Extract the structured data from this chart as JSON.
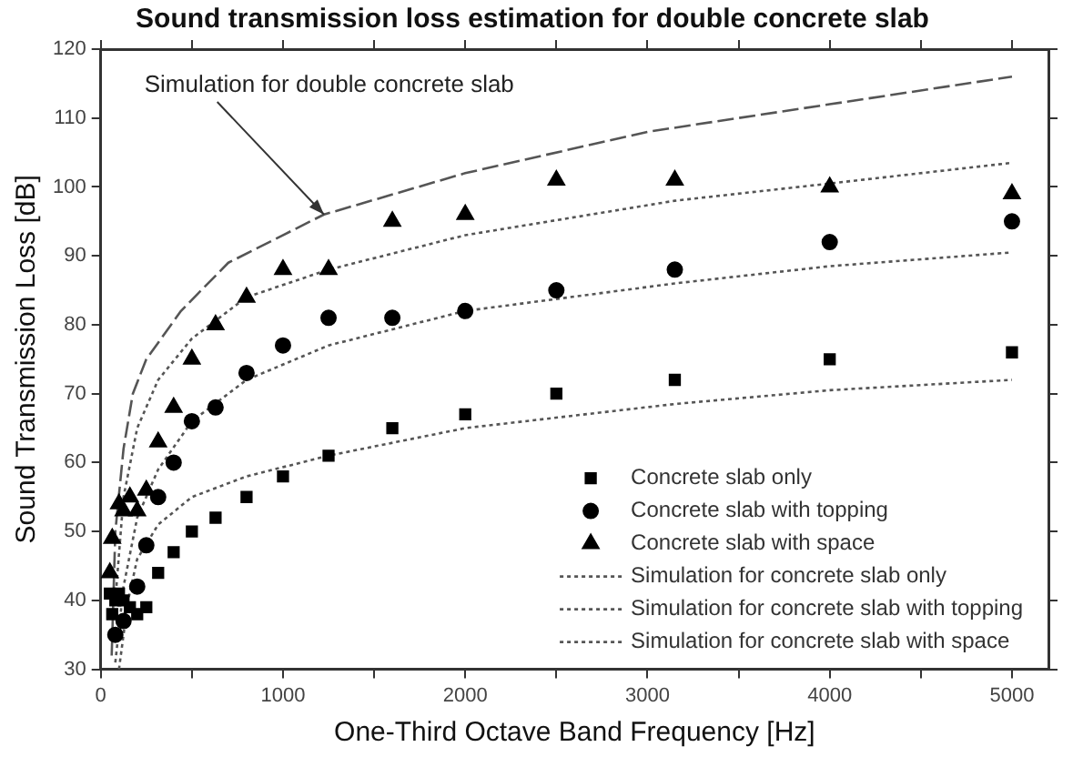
{
  "chart_data": {
    "type": "scatter",
    "title": "Sound transmission loss estimation for double concrete slab",
    "xlabel": "One-Third Octave Band Frequency [Hz]",
    "ylabel": "Sound Transmission Loss [dB]",
    "x": [
      50,
      63,
      80,
      100,
      125,
      160,
      200,
      250,
      315,
      400,
      500,
      630,
      800,
      1000,
      1250,
      1600,
      2000,
      2500,
      3150,
      4000,
      5000
    ],
    "xlim": [
      0,
      5200
    ],
    "ylim": [
      30,
      120
    ],
    "xticks": [
      0,
      {
        "value": 500,
        "label": null
      },
      1000,
      {
        "value": 1500,
        "label": null
      },
      2000,
      {
        "value": 2500,
        "label": null
      },
      3000,
      {
        "value": 3500,
        "label": null
      },
      4000,
      {
        "value": 4500,
        "label": null
      },
      5000
    ],
    "yticks": [
      30,
      40,
      50,
      60,
      70,
      80,
      90,
      100,
      110,
      120
    ],
    "grid": false,
    "legend": "bottom right",
    "series": [
      {
        "name": "Concrete slab only",
        "type": "scatter",
        "marker": "square",
        "color": "#000000",
        "values": [
          41,
          38,
          40,
          41,
          40,
          39,
          38,
          39,
          44,
          47,
          50,
          52,
          55,
          58,
          61,
          65,
          67,
          70,
          72,
          75,
          76
        ]
      },
      {
        "name": "Concrete slab with topping",
        "type": "scatter",
        "marker": "circle",
        "color": "#000000",
        "values": [
          null,
          null,
          35,
          null,
          37,
          null,
          42,
          48,
          55,
          60,
          66,
          68,
          73,
          77,
          81,
          81,
          82,
          85,
          88,
          92,
          95
        ]
      },
      {
        "name": "Concrete slab with space",
        "type": "scatter",
        "marker": "triangle",
        "color": "#000000",
        "values": [
          44,
          49,
          null,
          54,
          53,
          55,
          53,
          56,
          63,
          68,
          75,
          80,
          84,
          88,
          88,
          95,
          96,
          101,
          101,
          100,
          99
        ]
      },
      {
        "name": "Simulation for concrete slab only",
        "type": "line",
        "line_style": "dotted",
        "marker": "none",
        "color": "#555555",
        "x": [
          100,
          150,
          200,
          315,
          500,
          800,
          1250,
          2000,
          3150,
          4000,
          5000
        ],
        "values": [
          30,
          40,
          46,
          51,
          55,
          58,
          61,
          65,
          68.5,
          70.5,
          72
        ]
      },
      {
        "name": "Simulation for concrete slab with topping",
        "type": "line",
        "line_style": "dotted",
        "marker": "none",
        "color": "#555555",
        "x": [
          80,
          125,
          200,
          315,
          500,
          800,
          1250,
          2000,
          3150,
          4000,
          5000
        ],
        "values": [
          31,
          42,
          52,
          59,
          66,
          72,
          77,
          82,
          86,
          88.5,
          90.5
        ]
      },
      {
        "name": "Simulation for concrete slab with space",
        "type": "line",
        "line_style": "dotted",
        "marker": "none",
        "color": "#555555",
        "x": [
          80,
          125,
          200,
          315,
          500,
          800,
          1250,
          2000,
          3150,
          4000,
          5000
        ],
        "values": [
          40,
          55,
          65,
          72,
          78,
          84,
          88,
          93,
          98,
          100.5,
          103.5
        ]
      },
      {
        "type": "line",
        "line_style": "dashed",
        "marker": "none",
        "color": "#555555",
        "x": [
          60,
          80,
          125,
          176,
          250,
          440,
          700,
          1225,
          2000,
          3000,
          4000,
          5000
        ],
        "values": [
          32,
          50,
          62,
          70,
          75,
          82,
          89,
          96,
          102,
          108,
          112,
          116
        ]
      }
    ],
    "annotations": [
      {
        "text": "Simulation for double concrete slab",
        "x": 1225,
        "y": 96
      }
    ]
  }
}
